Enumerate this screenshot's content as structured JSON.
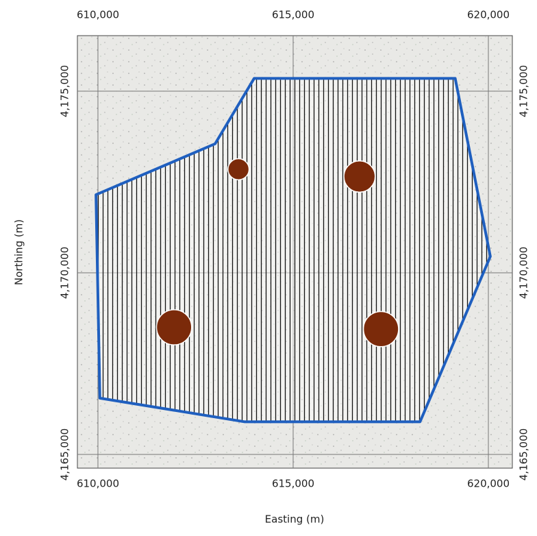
{
  "map": {
    "x_label": "Easting (m)",
    "y_label": "Northing (m)",
    "xlim": [
      609474,
      620614
    ],
    "ylim": [
      4164623,
      4176528
    ],
    "xticks": [
      {
        "value": 610000,
        "label": "610,000"
      },
      {
        "value": 615000,
        "label": "615,000"
      },
      {
        "value": 620000,
        "label": "620,000"
      }
    ],
    "yticks": [
      {
        "value": 4165000,
        "label": "4,165,000"
      },
      {
        "value": 4170000,
        "label": "4,170,000"
      },
      {
        "value": 4175000,
        "label": "4,175,000"
      }
    ],
    "grid": true,
    "boundary": {
      "color": "#1f5fbf",
      "x": [
        614000,
        619150,
        620050,
        618250,
        613750,
        610050,
        609950,
        613000
      ],
      "y": [
        4175350,
        4175350,
        4170450,
        4165900,
        4165900,
        4166550,
        4172150,
        4173550
      ]
    },
    "zones": {
      "color": "#7b2a0a",
      "x": [
        613600,
        616700,
        617250,
        611950
      ],
      "y": [
        4172850,
        4172650,
        4168450,
        4168500
      ],
      "r": [
        270,
        400,
        450,
        450
      ]
    }
  }
}
